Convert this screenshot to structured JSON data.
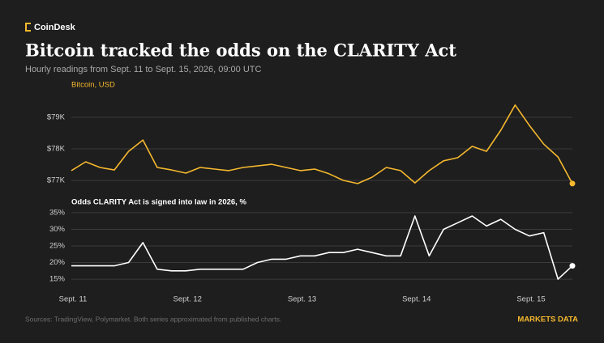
{
  "brand": "CoinDesk",
  "title": "Bitcoin tracked the odds on the CLARITY Act",
  "subtitle": "Hourly readings from Sept. 11 to Sept. 15, 2026, 09:00 UTC",
  "footer": {
    "source": "Sources: TradingView, Polymarket. Both series approximated from published charts.",
    "credit": "MARKETS DATA"
  },
  "chart_data": [
    {
      "type": "line",
      "x": [
        0,
        3,
        6,
        9,
        12,
        15,
        18,
        21,
        24,
        27,
        30,
        33,
        36,
        39,
        42,
        45,
        48,
        51,
        54,
        57,
        60,
        63,
        66,
        69,
        72,
        75,
        78,
        81,
        84,
        87,
        90,
        93,
        96,
        99,
        102,
        105
      ],
      "xlim": [
        0,
        105
      ],
      "series": [
        {
          "name": "Bitcoin, USD",
          "color": "#f5b82e",
          "values": [
            77310,
            77590,
            77410,
            77330,
            77920,
            78280,
            77410,
            77330,
            77230,
            77410,
            77360,
            77310,
            77410,
            77460,
            77510,
            77410,
            77310,
            77360,
            77210,
            77000,
            76900,
            77100,
            77410,
            77310,
            76920,
            77310,
            77620,
            77720,
            78080,
            77920,
            78590,
            79390,
            78740,
            78150,
            77740,
            76900
          ]
        }
      ],
      "ylim": [
        76800,
        79500
      ],
      "yticks": [
        {
          "value": 77000,
          "label": "$77K"
        },
        {
          "value": 78000,
          "label": "$78K"
        },
        {
          "value": 79000,
          "label": "$79K"
        }
      ],
      "grid": true
    },
    {
      "type": "line",
      "x": [
        0,
        3,
        6,
        9,
        12,
        15,
        18,
        21,
        24,
        27,
        30,
        33,
        36,
        39,
        42,
        45,
        48,
        51,
        54,
        57,
        60,
        63,
        66,
        69,
        72,
        75,
        78,
        81,
        84,
        87,
        90,
        93,
        96,
        99,
        102,
        105
      ],
      "xlim": [
        0,
        105
      ],
      "xticks": [
        {
          "value": 0,
          "label": "Sept. 11"
        },
        {
          "value": 24,
          "label": "Sept. 12"
        },
        {
          "value": 48,
          "label": "Sept. 13"
        },
        {
          "value": 72,
          "label": "Sept. 14"
        },
        {
          "value": 96,
          "label": "Sept. 15"
        }
      ],
      "series": [
        {
          "name": "Odds CLARITY Act is signed into law in 2026, %",
          "color": "#ffffff",
          "values": [
            19,
            19,
            19,
            19,
            20,
            26,
            18,
            17.5,
            17.5,
            18,
            18,
            18,
            18,
            20,
            21,
            21,
            22,
            22,
            23,
            23,
            24,
            23,
            22,
            22,
            34,
            22,
            30,
            32,
            34,
            31,
            33,
            30,
            28,
            29,
            15,
            19
          ]
        }
      ],
      "ylim": [
        13.8,
        36.2
      ],
      "yticks": [
        {
          "value": 15,
          "label": "15%"
        },
        {
          "value": 20,
          "label": "20%"
        },
        {
          "value": 25,
          "label": "25%"
        },
        {
          "value": 30,
          "label": "30%"
        },
        {
          "value": 35,
          "label": "35%"
        }
      ],
      "grid": true
    }
  ]
}
